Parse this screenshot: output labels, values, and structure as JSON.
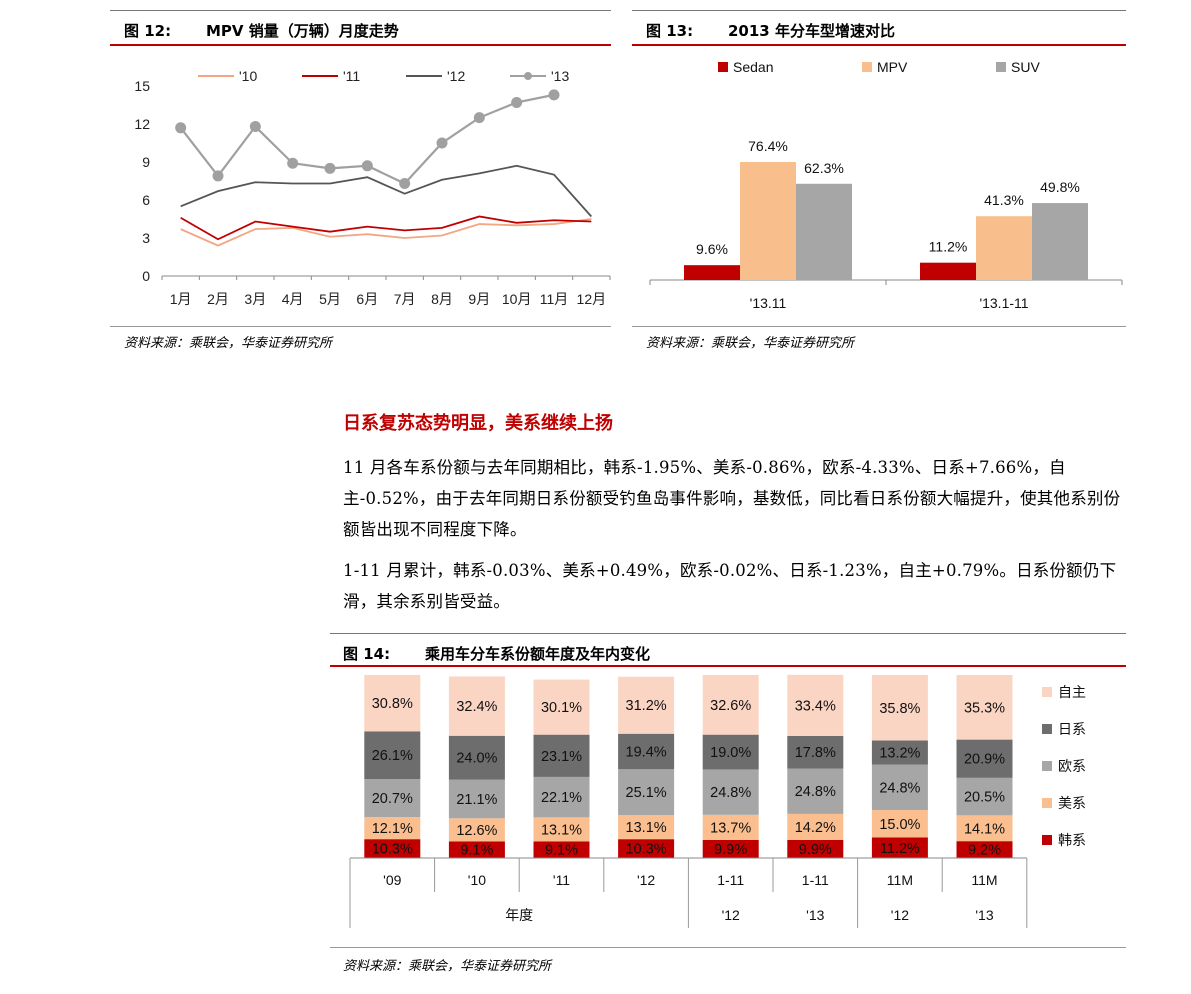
{
  "figures": [
    {
      "number": "图 12:",
      "title": "MPV 销量（万辆）月度走势",
      "source": "资料来源：乘联会，华泰证券研究所",
      "chart_data": {
        "type": "line",
        "x": [
          "1月",
          "2月",
          "3月",
          "4月",
          "5月",
          "6月",
          "7月",
          "8月",
          "9月",
          "10月",
          "11月",
          "12月"
        ],
        "ylim": [
          0,
          15
        ],
        "yticks": [
          "0",
          "3",
          "6",
          "9",
          "12",
          "15"
        ],
        "grid": false,
        "legend_position": "top",
        "series": [
          {
            "name": "'10",
            "color": "#f4a582",
            "values": [
              3.7,
              2.4,
              3.7,
              3.8,
              3.1,
              3.3,
              3.0,
              3.2,
              4.1,
              4.0,
              4.1,
              4.5
            ]
          },
          {
            "name": "'11",
            "color": "#c00000",
            "values": [
              4.6,
              2.9,
              4.3,
              3.9,
              3.5,
              3.9,
              3.6,
              3.8,
              4.7,
              4.2,
              4.4,
              4.3
            ]
          },
          {
            "name": "'12",
            "color": "#555555",
            "values": [
              5.5,
              6.7,
              7.4,
              7.3,
              7.3,
              7.8,
              6.5,
              7.6,
              8.1,
              8.7,
              8.0,
              4.7
            ]
          },
          {
            "name": "'13",
            "color": "#a0a0a0",
            "markers": true,
            "values": [
              11.7,
              7.9,
              11.8,
              8.9,
              8.5,
              8.7,
              7.3,
              10.5,
              12.5,
              13.7,
              14.3,
              null
            ]
          }
        ]
      }
    },
    {
      "number": "图 13:",
      "title": "2013 年分车型增速对比",
      "source": "资料来源：乘联会，华泰证券研究所",
      "chart_data": {
        "type": "bar",
        "categories": [
          "'13.11",
          "'13.1-11"
        ],
        "legend_position": "top",
        "grid": false,
        "ylim": [
          0,
          90
        ],
        "series": [
          {
            "name": "Sedan",
            "color": "#c00000",
            "values": [
              9.6,
              11.2
            ],
            "labels": [
              "9.6%",
              "11.2%"
            ]
          },
          {
            "name": "MPV",
            "color": "#f8be8c",
            "values": [
              76.4,
              41.3
            ],
            "labels": [
              "76.4%",
              "41.3%"
            ]
          },
          {
            "name": "SUV",
            "color": "#a6a6a6",
            "values": [
              62.3,
              49.8
            ],
            "labels": [
              "62.3%",
              "49.8%"
            ]
          }
        ]
      }
    },
    {
      "number": "图 14:",
      "title": "乘用车分车系份额年度及年内变化",
      "source": "资料来源：乘联会，华泰证券研究所",
      "chart_data": {
        "type": "bar",
        "stacked": true,
        "categories": [
          "'09",
          "'10",
          "'11",
          "'12",
          "1-11 '12",
          "1-11 '13",
          "11M '12",
          "11M '13"
        ],
        "axis_rows": {
          "row1": [
            "'09",
            "'10",
            "'11",
            "'12",
            "1-11",
            "1-11",
            "11M",
            "11M"
          ],
          "row2": [
            "年度",
            "'12",
            "'13",
            "'12",
            "'13"
          ]
        },
        "legend_position": "right",
        "ylim": [
          0,
          100
        ],
        "series": [
          {
            "name": "韩系",
            "color": "#c00000",
            "values": [
              10.3,
              9.1,
              9.1,
              10.3,
              9.9,
              9.9,
              11.2,
              9.2
            ]
          },
          {
            "name": "美系",
            "color": "#fbbf8f",
            "values": [
              12.1,
              12.6,
              13.1,
              13.1,
              13.7,
              14.2,
              15.0,
              14.1
            ]
          },
          {
            "name": "欧系",
            "color": "#a6a6a6",
            "values": [
              20.7,
              21.1,
              22.1,
              25.1,
              24.8,
              24.8,
              24.8,
              20.5
            ]
          },
          {
            "name": "日系",
            "color": "#6d6d6d",
            "values": [
              26.1,
              24.0,
              23.1,
              19.4,
              19.0,
              17.8,
              13.2,
              20.9
            ]
          },
          {
            "name": "自主",
            "color": "#fbd5c3",
            "values": [
              30.8,
              32.4,
              30.1,
              31.2,
              32.6,
              33.4,
              35.8,
              35.3
            ]
          }
        ]
      }
    }
  ],
  "section": {
    "heading": "日系复苏态势明显，美系继续上扬",
    "para1": "11 月各车系份额与去年同期相比，韩系-1.95%、美系-0.86%，欧系-4.33%、日系+7.66%，自主-0.52%，由于去年同期日系份额受钓鱼岛事件影响，基数低，同比看日系份额大幅提升，使其他系别份额皆出现不同程度下降。",
    "para2": "1-11 月累计，韩系-0.03%、美系+0.49%，欧系-0.02%、日系-1.23%，自主+0.79%。日系份额仍下滑，其余系别皆受益。"
  }
}
